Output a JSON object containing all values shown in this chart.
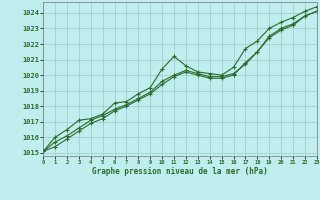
{
  "title": "Graphe pression niveau de la mer (hPa)",
  "bg_color": "#c0eded",
  "grid_color": "#a0c8c8",
  "line_color": "#2d6b2d",
  "xlim": [
    0,
    23
  ],
  "ylim": [
    1014.8,
    1024.7
  ],
  "xticks": [
    0,
    1,
    2,
    3,
    4,
    5,
    6,
    7,
    8,
    9,
    10,
    11,
    12,
    13,
    14,
    15,
    16,
    17,
    18,
    19,
    20,
    21,
    22,
    23
  ],
  "yticks": [
    1015,
    1016,
    1017,
    1018,
    1019,
    1020,
    1021,
    1022,
    1023,
    1024
  ],
  "s1_x": [
    0,
    1,
    2,
    3,
    4,
    5,
    6,
    7,
    8,
    9,
    10,
    11,
    12,
    13,
    14,
    15,
    16,
    17,
    18,
    19,
    20,
    21,
    22,
    23
  ],
  "s1_y": [
    1015.1,
    1016.0,
    1016.5,
    1017.1,
    1017.2,
    1017.5,
    1018.2,
    1018.3,
    1018.8,
    1019.2,
    1020.4,
    1021.2,
    1020.6,
    1020.2,
    1020.1,
    1020.0,
    1020.5,
    1021.7,
    1022.2,
    1023.0,
    1023.4,
    1023.7,
    1024.1,
    1024.4
  ],
  "s2_x": [
    0,
    1,
    2,
    3,
    4,
    5,
    6,
    7,
    8,
    9,
    10,
    11,
    12,
    13,
    14,
    15,
    16,
    17,
    18,
    19,
    20,
    21,
    22,
    23
  ],
  "s2_y": [
    1015.1,
    1015.7,
    1016.1,
    1016.6,
    1017.1,
    1017.4,
    1017.8,
    1018.1,
    1018.5,
    1018.9,
    1019.6,
    1020.0,
    1020.3,
    1020.1,
    1019.9,
    1019.9,
    1020.1,
    1020.7,
    1021.5,
    1022.4,
    1022.9,
    1023.2,
    1023.8,
    1024.1
  ],
  "s3_x": [
    0,
    1,
    2,
    3,
    4,
    5,
    6,
    7,
    8,
    9,
    10,
    11,
    12,
    13,
    14,
    15,
    16,
    17,
    18,
    19,
    20,
    21,
    22,
    23
  ],
  "s3_y": [
    1015.1,
    1015.4,
    1015.9,
    1016.4,
    1016.9,
    1017.2,
    1017.7,
    1018.0,
    1018.4,
    1018.8,
    1019.4,
    1019.9,
    1020.2,
    1020.0,
    1019.8,
    1019.8,
    1020.0,
    1020.8,
    1021.5,
    1022.5,
    1023.0,
    1023.3,
    1023.8,
    1024.1
  ]
}
